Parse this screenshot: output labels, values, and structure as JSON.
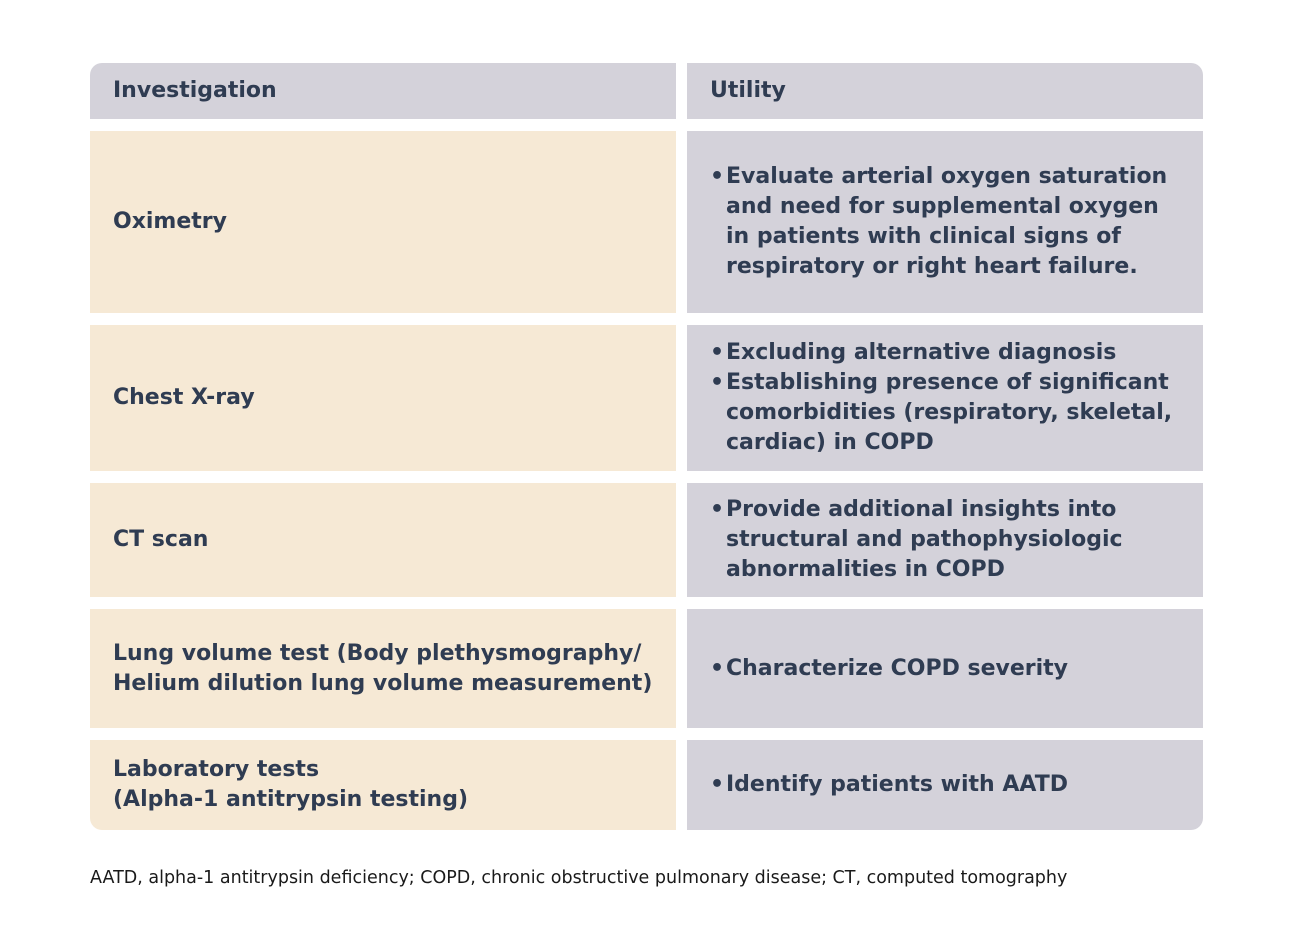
{
  "table": {
    "headers": {
      "investigation": "Investigation",
      "utility": "Utility"
    },
    "rows": [
      {
        "investigation": [
          "Oximetry"
        ],
        "utility": [
          "Evaluate arterial oxygen saturation and need for supplemental oxygen in patients with clinical signs of respiratory or right heart failure."
        ]
      },
      {
        "investigation": [
          "Chest X-ray"
        ],
        "utility": [
          "Excluding alternative diagnosis",
          "Establishing presence of significant comorbidities (respiratory, skeletal, cardiac) in COPD"
        ]
      },
      {
        "investigation": [
          "CT scan"
        ],
        "utility": [
          "Provide additional insights into structural and pathophysiologic abnormalities in COPD"
        ]
      },
      {
        "investigation": [
          "Lung volume test (Body plethysmography/",
          "Helium dilution lung volume measurement)"
        ],
        "utility": [
          "Characterize COPD severity"
        ]
      },
      {
        "investigation": [
          "Laboratory tests",
          "(Alpha-1 antitrypsin testing)"
        ],
        "utility": [
          "Identify patients with AATD"
        ]
      }
    ]
  },
  "footnote": "AATD, alpha-1 antitrypsin deficiency; COPD, chronic obstructive pulmonary disease; CT, computed tomography",
  "colors": {
    "header_bg": "#d4d2da",
    "investigation_bg": "#f6e9d5",
    "utility_bg": "#d4d2da",
    "text": "#2f3c52"
  }
}
